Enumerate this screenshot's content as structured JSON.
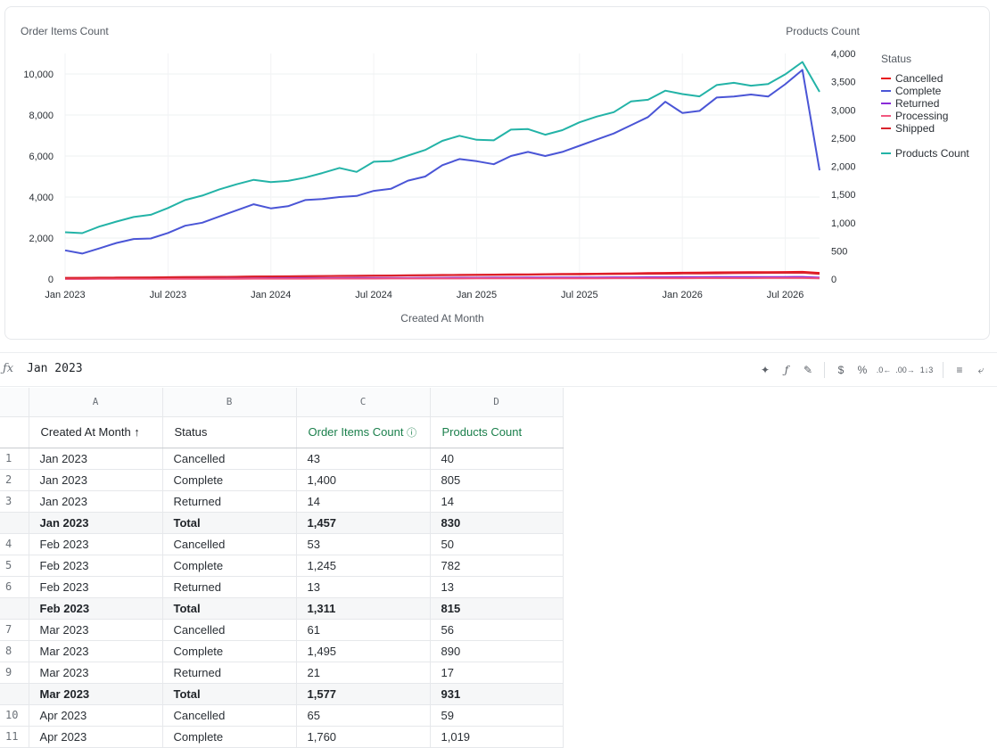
{
  "chart_data": {
    "type": "line",
    "left_axis_label": "Order Items Count",
    "right_axis_label": "Products Count",
    "xlabel": "Created At Month",
    "legend_title": "Status",
    "x_ticks": [
      "Jan 2023",
      "Jul 2023",
      "Jan 2024",
      "Jul 2024",
      "Jan 2025",
      "Jul 2025",
      "Jan 2026",
      "Jul 2026"
    ],
    "y_left_ticks": [
      "0",
      "2,000",
      "4,000",
      "6,000",
      "8,000",
      "10,000"
    ],
    "y_right_ticks": [
      "0",
      "500",
      "1,000",
      "1,500",
      "2,000",
      "2,500",
      "3,000",
      "3,500",
      "4,000"
    ],
    "ylim_left": [
      0,
      11000
    ],
    "ylim_right": [
      0,
      4000
    ],
    "x": [
      "2023-01",
      "2023-02",
      "2023-03",
      "2023-04",
      "2023-05",
      "2023-06",
      "2023-07",
      "2023-08",
      "2023-09",
      "2023-10",
      "2023-11",
      "2023-12",
      "2024-01",
      "2024-02",
      "2024-03",
      "2024-04",
      "2024-05",
      "2024-06",
      "2024-07",
      "2024-08",
      "2024-09",
      "2024-10",
      "2024-11",
      "2024-12",
      "2025-01",
      "2025-02",
      "2025-03",
      "2025-04",
      "2025-05",
      "2025-06",
      "2025-07",
      "2025-08",
      "2025-09",
      "2025-10",
      "2025-11",
      "2025-12",
      "2026-01",
      "2026-02",
      "2026-03",
      "2026-04",
      "2026-05",
      "2026-06",
      "2026-07",
      "2026-08",
      "2026-09"
    ],
    "series": [
      {
        "name": "Cancelled",
        "axis": "left",
        "color": "#e8131c",
        "values": [
          43,
          53,
          61,
          65,
          70,
          78,
          90,
          95,
          100,
          108,
          115,
          125,
          130,
          135,
          140,
          150,
          155,
          160,
          168,
          175,
          182,
          190,
          198,
          205,
          212,
          218,
          225,
          232,
          240,
          248,
          255,
          262,
          270,
          280,
          290,
          300,
          310,
          318,
          325,
          330,
          335,
          340,
          345,
          350,
          300
        ]
      },
      {
        "name": "Complete",
        "axis": "left",
        "color": "#4a55d6",
        "values": [
          1400,
          1245,
          1495,
          1760,
          1950,
          1980,
          2250,
          2600,
          2750,
          3050,
          3350,
          3650,
          3450,
          3550,
          3850,
          3900,
          4000,
          4050,
          4300,
          4400,
          4800,
          5000,
          5550,
          5850,
          5750,
          5600,
          6000,
          6200,
          6000,
          6200,
          6500,
          6800,
          7100,
          7500,
          7900,
          8650,
          8100,
          8200,
          8850,
          8900,
          9000,
          8900,
          9500,
          10200,
          5300
        ]
      },
      {
        "name": "Returned",
        "axis": "left",
        "color": "#8a2bd8",
        "values": [
          14,
          13,
          21,
          24,
          26,
          28,
          30,
          32,
          34,
          36,
          38,
          40,
          42,
          44,
          46,
          48,
          50,
          52,
          54,
          56,
          58,
          60,
          62,
          64,
          66,
          68,
          70,
          72,
          74,
          76,
          78,
          80,
          82,
          84,
          86,
          88,
          90,
          92,
          94,
          96,
          98,
          100,
          102,
          104,
          70
        ]
      },
      {
        "name": "Processing",
        "axis": "left",
        "color": "#f2577f",
        "values": [
          5,
          6,
          7,
          8,
          9,
          10,
          11,
          12,
          13,
          14,
          15,
          16,
          17,
          18,
          19,
          20,
          21,
          22,
          23,
          24,
          25,
          26,
          27,
          28,
          29,
          30,
          31,
          32,
          33,
          34,
          35,
          36,
          37,
          38,
          39,
          40,
          41,
          42,
          43,
          44,
          45,
          46,
          47,
          48,
          30
        ]
      },
      {
        "name": "Shipped",
        "axis": "left",
        "color": "#d9232c",
        "values": [
          60,
          62,
          68,
          72,
          76,
          80,
          88,
          92,
          98,
          104,
          110,
          118,
          124,
          130,
          136,
          142,
          148,
          154,
          160,
          166,
          172,
          178,
          184,
          190,
          196,
          202,
          208,
          214,
          220,
          226,
          232,
          238,
          244,
          250,
          256,
          262,
          268,
          274,
          280,
          286,
          292,
          298,
          304,
          310,
          250
        ]
      },
      {
        "name": "Products Count",
        "axis": "right",
        "color": "#23b3a7",
        "values": [
          830,
          815,
          931,
          1019,
          1100,
          1140,
          1260,
          1400,
          1480,
          1590,
          1680,
          1760,
          1720,
          1740,
          1800,
          1880,
          1970,
          1900,
          2080,
          2090,
          2190,
          2290,
          2450,
          2540,
          2470,
          2460,
          2650,
          2660,
          2560,
          2640,
          2780,
          2880,
          2960,
          3150,
          3180,
          3340,
          3280,
          3240,
          3440,
          3480,
          3430,
          3460,
          3630,
          3850,
          3320
        ]
      }
    ]
  },
  "toolbar": {
    "fx": "ƒx",
    "formula_value": "Jan 2023"
  },
  "grid": {
    "col_letters": [
      "A",
      "B",
      "C",
      "D"
    ],
    "headers": [
      "Created At Month ↑",
      "Status",
      "Order Items Count",
      "Products Count"
    ],
    "rows": [
      {
        "num": "1",
        "kind": "data",
        "cells": [
          "Jan 2023",
          "Cancelled",
          "43",
          "40"
        ]
      },
      {
        "num": "2",
        "kind": "data",
        "cells": [
          "Jan 2023",
          "Complete",
          "1,400",
          "805"
        ]
      },
      {
        "num": "3",
        "kind": "data",
        "cells": [
          "Jan 2023",
          "Returned",
          "14",
          "14"
        ]
      },
      {
        "num": "",
        "kind": "total",
        "cells": [
          "Jan 2023",
          "Total",
          "1,457",
          "830"
        ]
      },
      {
        "num": "4",
        "kind": "data",
        "cells": [
          "Feb 2023",
          "Cancelled",
          "53",
          "50"
        ]
      },
      {
        "num": "5",
        "kind": "data",
        "cells": [
          "Feb 2023",
          "Complete",
          "1,245",
          "782"
        ]
      },
      {
        "num": "6",
        "kind": "data",
        "cells": [
          "Feb 2023",
          "Returned",
          "13",
          "13"
        ]
      },
      {
        "num": "",
        "kind": "total",
        "cells": [
          "Feb 2023",
          "Total",
          "1,311",
          "815"
        ]
      },
      {
        "num": "7",
        "kind": "data",
        "cells": [
          "Mar 2023",
          "Cancelled",
          "61",
          "56"
        ]
      },
      {
        "num": "8",
        "kind": "data",
        "cells": [
          "Mar 2023",
          "Complete",
          "1,495",
          "890"
        ]
      },
      {
        "num": "9",
        "kind": "data",
        "cells": [
          "Mar 2023",
          "Returned",
          "21",
          "17"
        ]
      },
      {
        "num": "",
        "kind": "total",
        "cells": [
          "Mar 2023",
          "Total",
          "1,577",
          "931"
        ]
      },
      {
        "num": "10",
        "kind": "data",
        "cells": [
          "Apr 2023",
          "Cancelled",
          "65",
          "59"
        ]
      },
      {
        "num": "11",
        "kind": "data",
        "cells": [
          "Apr 2023",
          "Complete",
          "1,760",
          "1,019"
        ]
      }
    ]
  }
}
